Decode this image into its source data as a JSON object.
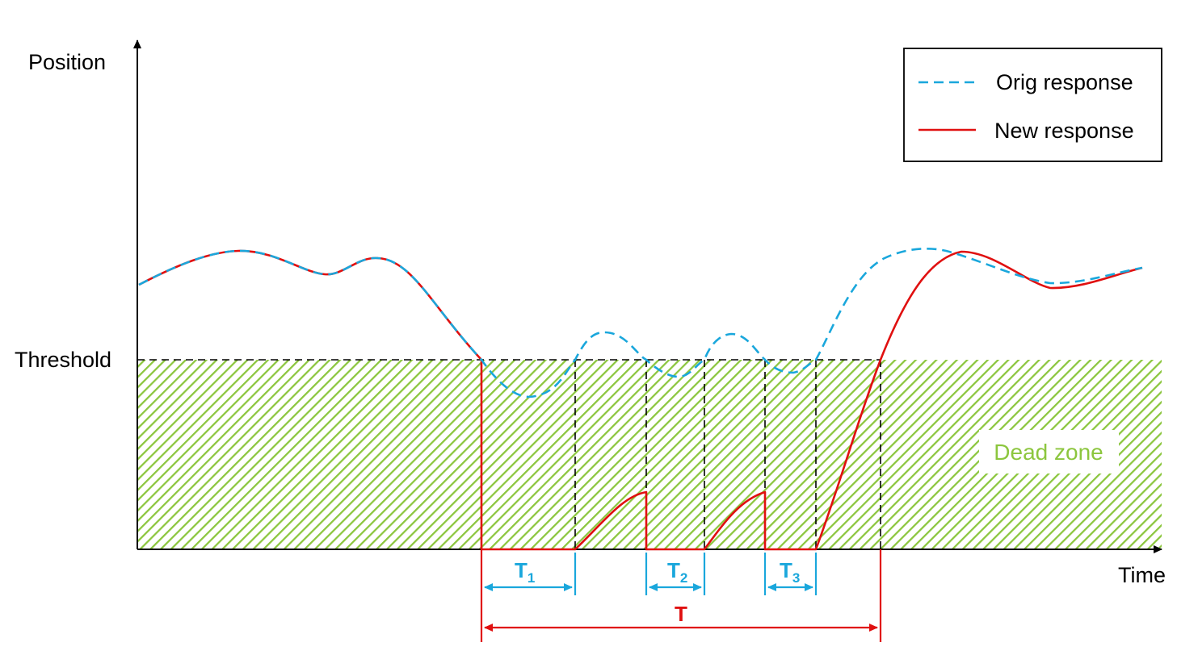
{
  "axes": {
    "y_label": "Position",
    "x_label": "Time",
    "threshold_label": "Threshold"
  },
  "legend": {
    "orig_label": "Orig response",
    "new_label": "New response"
  },
  "dead_zone_label": "Dead zone",
  "intervals": {
    "t1": {
      "main": "T",
      "sub": "1"
    },
    "t2": {
      "main": "T",
      "sub": "2"
    },
    "t3": {
      "main": "T",
      "sub": "3"
    },
    "total": {
      "main": "T"
    }
  },
  "colors": {
    "orig": "#1aa7dc",
    "new": "#e01010",
    "dead_zone": "#8cc63e",
    "axis": "#000000"
  }
}
